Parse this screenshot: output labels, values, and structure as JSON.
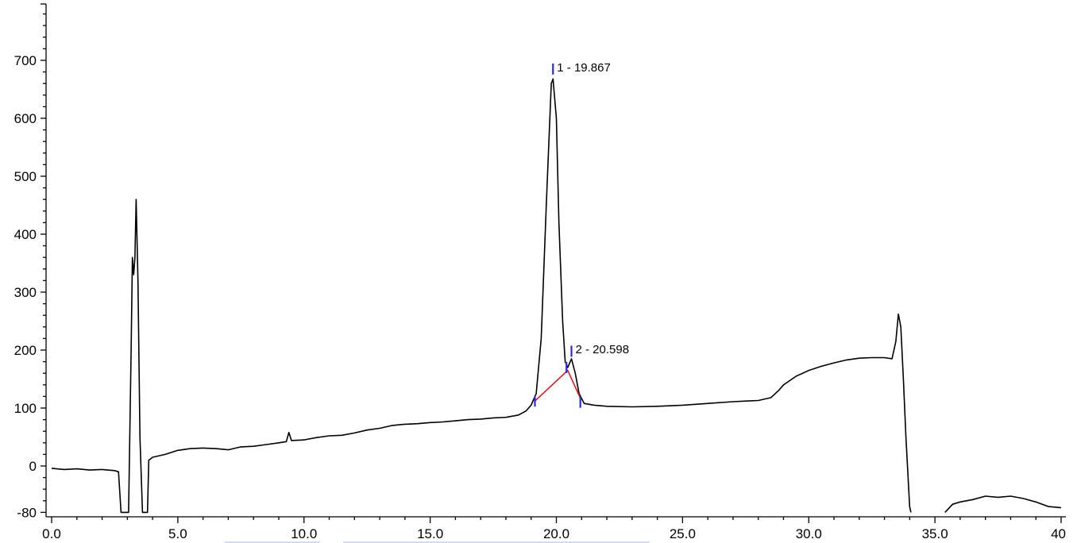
{
  "chart_data": {
    "type": "line",
    "title": "",
    "xlabel": "",
    "ylabel": "",
    "xlim": [
      0,
      40
    ],
    "ylim": [
      -80,
      800
    ],
    "x_ticks": [
      {
        "value": 0,
        "label": "0.0"
      },
      {
        "value": 5,
        "label": "5.0"
      },
      {
        "value": 10,
        "label": "10.0"
      },
      {
        "value": 15,
        "label": "15.0"
      },
      {
        "value": 20,
        "label": "20.0"
      },
      {
        "value": 25,
        "label": "25.0"
      },
      {
        "value": 30,
        "label": "30.0"
      },
      {
        "value": 35,
        "label": "35.0"
      },
      {
        "value": 40,
        "label": "40"
      }
    ],
    "y_ticks": [
      {
        "value": -80,
        "label": "-80"
      },
      {
        "value": 0,
        "label": "0"
      },
      {
        "value": 100,
        "label": "100"
      },
      {
        "value": 200,
        "label": "200"
      },
      {
        "value": 300,
        "label": "300"
      },
      {
        "value": 400,
        "label": "400"
      },
      {
        "value": 500,
        "label": "500"
      },
      {
        "value": 600,
        "label": "600"
      },
      {
        "value": 700,
        "label": "700"
      }
    ],
    "grid": false,
    "legend": "none",
    "colors": {
      "trace": "#000000",
      "baseline": "#e8141c",
      "markers": "#2b2bd6"
    },
    "series": [
      {
        "points": [
          [
            0.0,
            -4
          ],
          [
            0.5,
            -6
          ],
          [
            1.0,
            -5
          ],
          [
            1.5,
            -7
          ],
          [
            2.0,
            -6
          ],
          [
            2.5,
            -8
          ],
          [
            2.65,
            -10
          ],
          [
            2.75,
            -80
          ],
          [
            3.05,
            -80
          ],
          [
            3.15,
            200
          ],
          [
            3.2,
            360
          ],
          [
            3.25,
            330
          ],
          [
            3.3,
            360
          ],
          [
            3.35,
            460
          ],
          [
            3.42,
            320
          ],
          [
            3.5,
            50
          ],
          [
            3.6,
            -80
          ],
          [
            3.8,
            -80
          ],
          [
            3.85,
            10
          ],
          [
            4.0,
            15
          ],
          [
            4.5,
            20
          ],
          [
            5.0,
            27
          ],
          [
            5.5,
            30
          ],
          [
            6.0,
            31
          ],
          [
            6.5,
            30
          ],
          [
            7.0,
            28
          ],
          [
            7.5,
            33
          ],
          [
            8.0,
            34
          ],
          [
            8.5,
            37
          ],
          [
            9.0,
            40
          ],
          [
            9.3,
            42
          ],
          [
            9.4,
            58
          ],
          [
            9.5,
            44
          ],
          [
            10.0,
            45
          ],
          [
            10.5,
            49
          ],
          [
            11.0,
            52
          ],
          [
            11.5,
            53
          ],
          [
            12.0,
            57
          ],
          [
            12.5,
            62
          ],
          [
            13.0,
            65
          ],
          [
            13.5,
            70
          ],
          [
            14.0,
            72
          ],
          [
            14.5,
            73
          ],
          [
            15.0,
            75
          ],
          [
            15.5,
            76
          ],
          [
            16.0,
            78
          ],
          [
            16.5,
            80
          ],
          [
            17.0,
            81
          ],
          [
            17.5,
            83
          ],
          [
            18.0,
            84
          ],
          [
            18.5,
            88
          ],
          [
            18.8,
            95
          ],
          [
            19.0,
            105
          ],
          [
            19.2,
            125
          ],
          [
            19.4,
            220
          ],
          [
            19.6,
            450
          ],
          [
            19.8,
            660
          ],
          [
            19.867,
            668
          ],
          [
            20.0,
            600
          ],
          [
            20.1,
            420
          ],
          [
            20.25,
            250
          ],
          [
            20.35,
            180
          ],
          [
            20.45,
            170
          ],
          [
            20.598,
            185
          ],
          [
            20.75,
            160
          ],
          [
            20.9,
            125
          ],
          [
            21.1,
            108
          ],
          [
            21.5,
            105
          ],
          [
            22.0,
            103
          ],
          [
            23.0,
            102
          ],
          [
            24.0,
            103
          ],
          [
            25.0,
            105
          ],
          [
            26.0,
            108
          ],
          [
            27.0,
            111
          ],
          [
            27.5,
            112
          ],
          [
            28.0,
            113
          ],
          [
            28.5,
            118
          ],
          [
            28.8,
            130
          ],
          [
            29.0,
            140
          ],
          [
            29.5,
            155
          ],
          [
            30.0,
            165
          ],
          [
            30.5,
            172
          ],
          [
            31.0,
            178
          ],
          [
            31.5,
            183
          ],
          [
            32.0,
            186
          ],
          [
            32.5,
            187
          ],
          [
            33.0,
            187
          ],
          [
            33.3,
            185
          ],
          [
            33.45,
            215
          ],
          [
            33.55,
            262
          ],
          [
            33.65,
            240
          ],
          [
            33.75,
            150
          ],
          [
            33.85,
            50
          ],
          [
            34.0,
            -70
          ],
          [
            34.05,
            -80
          ]
        ]
      },
      {
        "points": [
          [
            35.4,
            -80
          ],
          [
            35.7,
            -66
          ],
          [
            36.0,
            -62
          ],
          [
            36.5,
            -58
          ],
          [
            37.0,
            -52
          ],
          [
            37.5,
            -54
          ],
          [
            38.0,
            -52
          ],
          [
            38.5,
            -56
          ],
          [
            39.0,
            -62
          ],
          [
            39.5,
            -70
          ],
          [
            40.0,
            -72
          ]
        ]
      }
    ],
    "peaks": [
      {
        "label": "1 - 19.867",
        "x": 19.867,
        "y": 668
      },
      {
        "label": "2 - 20.598",
        "x": 20.598,
        "y": 185
      }
    ],
    "integration_baseline": [
      [
        19.15,
        112
      ],
      [
        20.45,
        165
      ],
      [
        20.95,
        117
      ]
    ],
    "integration_markers": [
      [
        19.15,
        112
      ],
      [
        19.867,
        685
      ],
      [
        20.4,
        170
      ],
      [
        20.598,
        198
      ],
      [
        20.95,
        110
      ]
    ]
  }
}
